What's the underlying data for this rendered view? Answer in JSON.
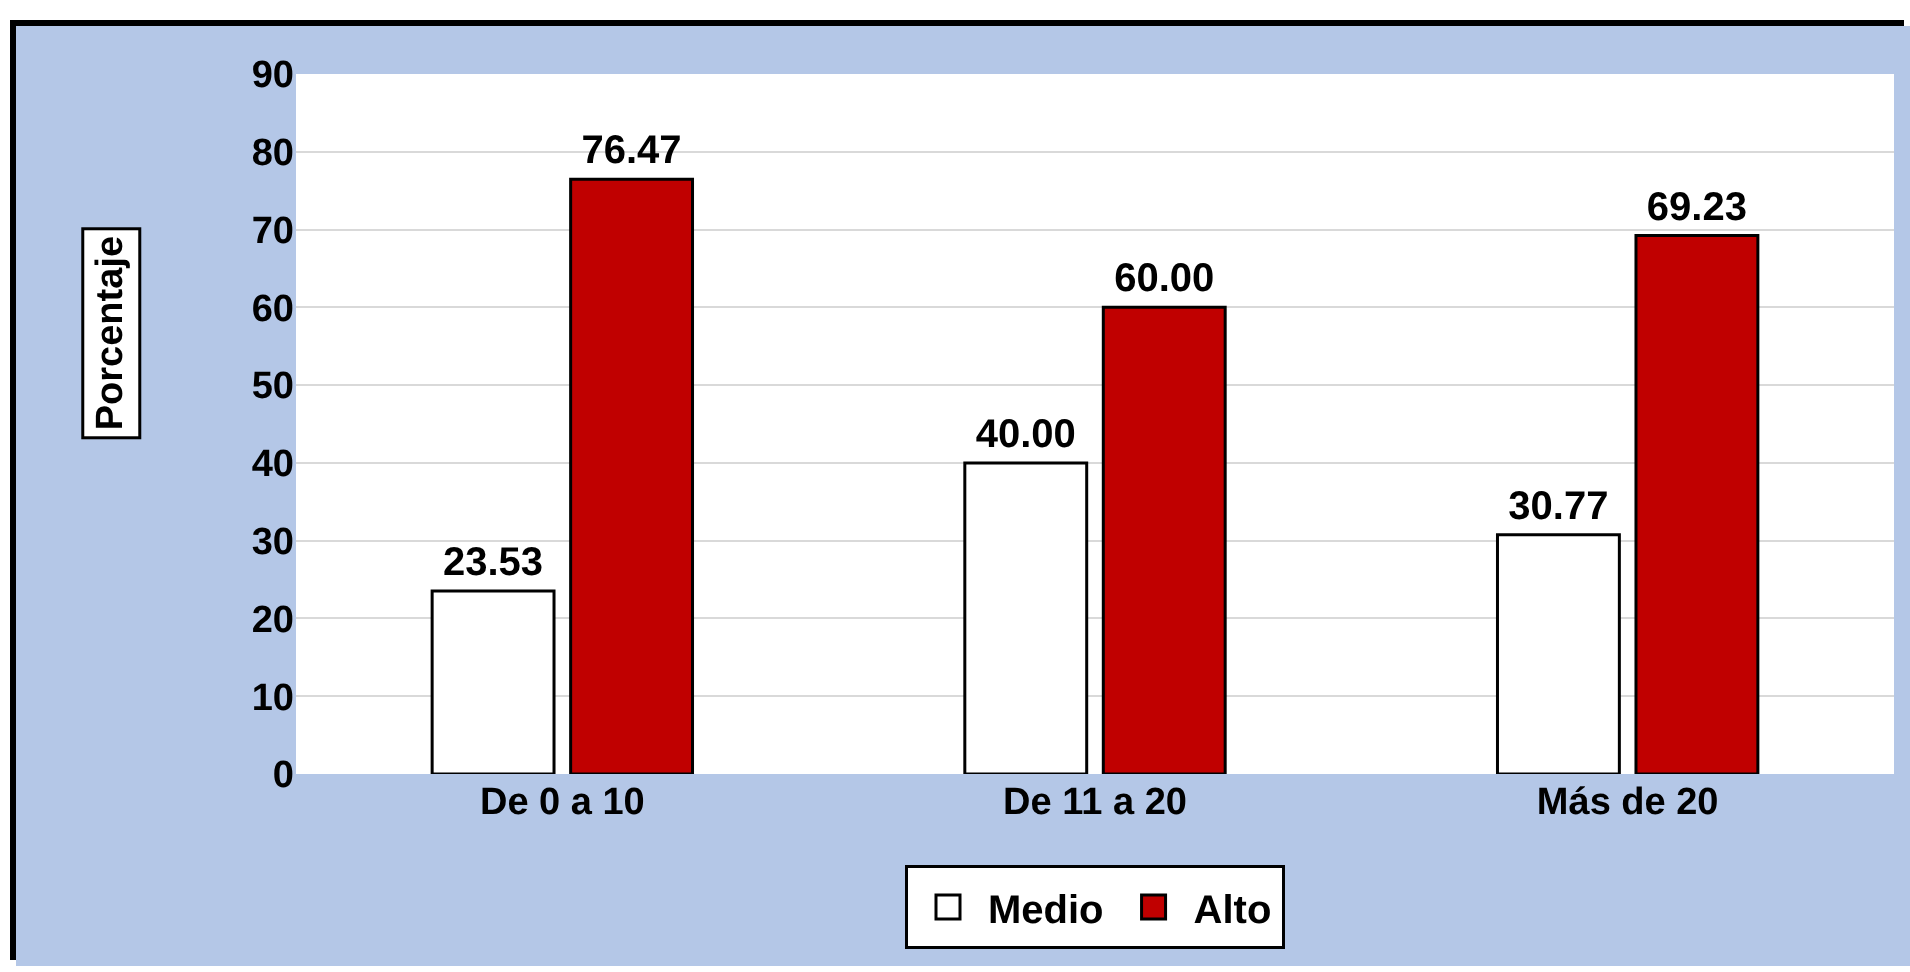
{
  "chart_data": {
    "type": "bar",
    "ylabel": "Porcentaje",
    "categories": [
      "De 0 a 10",
      "De 11 a 20",
      "Más de 20"
    ],
    "series": [
      {
        "name": "Medio",
        "color": "#ffffff",
        "values": [
          23.53,
          40.0,
          30.77
        ],
        "value_labels": [
          "23.53",
          "40.00",
          "30.77"
        ]
      },
      {
        "name": "Alto",
        "color": "#c00000",
        "values": [
          76.47,
          60.0,
          69.23
        ],
        "value_labels": [
          "76.47",
          "60.00",
          "69.23"
        ]
      }
    ],
    "ylim": [
      0,
      90
    ],
    "yticks": [
      0,
      10,
      20,
      30,
      40,
      50,
      60,
      70,
      80,
      90
    ],
    "grid": "y",
    "legend": "bottom"
  }
}
